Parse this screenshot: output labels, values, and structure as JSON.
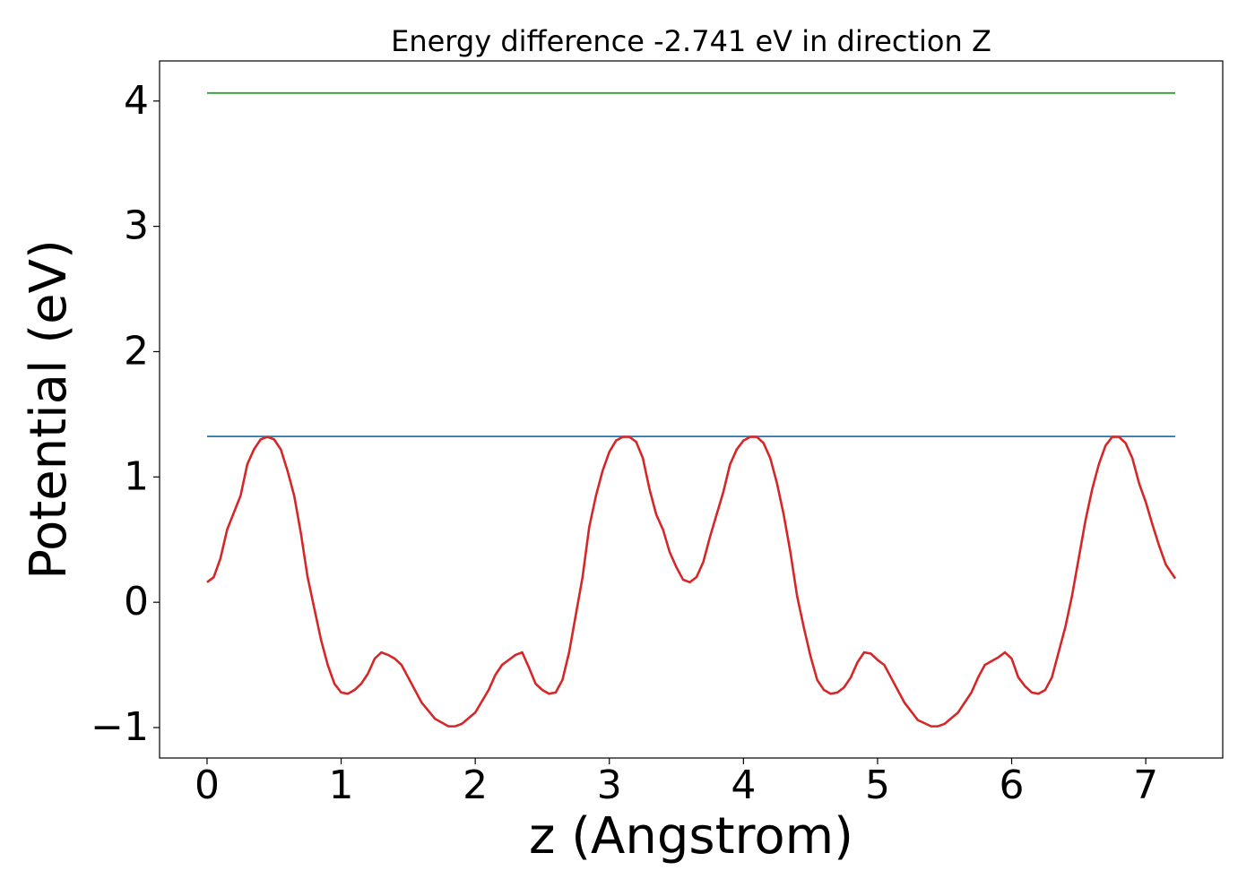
{
  "chart_data": {
    "type": "line",
    "title": "Energy difference -2.741 eV in direction Z",
    "xlabel": "z (Angstrom)",
    "ylabel": "Potential (eV)",
    "xlim": [
      -0.354,
      7.574
    ],
    "ylim": [
      -1.243,
      4.32
    ],
    "xticks": [
      0,
      1,
      2,
      3,
      4,
      5,
      6,
      7
    ],
    "yticks": [
      {
        "value": -1,
        "label": "−1"
      },
      0,
      1,
      2,
      3,
      4
    ],
    "series": [
      {
        "color": "#2ca02c",
        "x": [
          0,
          7.22
        ],
        "values": [
          4.064,
          4.064
        ]
      },
      {
        "color": "#1f77b4",
        "x": [
          0,
          7.22
        ],
        "values": [
          1.323,
          1.323
        ]
      },
      {
        "color": "#d62728",
        "x": [
          0,
          0.05,
          0.1,
          0.15,
          0.25,
          0.3,
          0.35,
          0.4,
          0.45,
          0.5,
          0.55,
          0.6,
          0.65,
          0.7,
          0.75,
          0.8,
          0.85,
          0.9,
          0.95,
          1.0,
          1.05,
          1.1,
          1.15,
          1.2,
          1.25,
          1.3,
          1.35,
          1.4,
          1.45,
          1.5,
          1.6,
          1.7,
          1.8,
          1.85,
          1.9,
          2.0,
          2.1,
          2.15,
          2.2,
          2.25,
          2.3,
          2.35,
          2.4,
          2.45,
          2.5,
          2.55,
          2.6,
          2.65,
          2.7,
          2.75,
          2.8,
          2.85,
          2.9,
          2.95,
          3.0,
          3.05,
          3.1,
          3.15,
          3.2,
          3.25,
          3.3,
          3.35,
          3.4,
          3.45,
          3.5,
          3.55,
          3.6,
          3.65,
          3.7,
          3.75,
          3.8,
          3.85,
          3.9,
          3.95,
          4.0,
          4.05,
          4.1,
          4.15,
          4.2,
          4.25,
          4.3,
          4.35,
          4.4,
          4.45,
          4.5,
          4.55,
          4.6,
          4.65,
          4.7,
          4.75,
          4.8,
          4.85,
          4.9,
          4.95,
          5.0,
          5.05,
          5.1,
          5.2,
          5.3,
          5.4,
          5.45,
          5.5,
          5.6,
          5.7,
          5.75,
          5.8,
          5.9,
          5.95,
          6.0,
          6.05,
          6.1,
          6.15,
          6.2,
          6.25,
          6.3,
          6.35,
          6.4,
          6.45,
          6.5,
          6.55,
          6.6,
          6.65,
          6.7,
          6.75,
          6.8,
          6.85,
          6.9,
          6.95,
          7.0,
          7.05,
          7.1,
          7.15,
          7.22
        ],
        "values": [
          0.16,
          0.2,
          0.35,
          0.58,
          0.85,
          1.1,
          1.22,
          1.3,
          1.32,
          1.3,
          1.22,
          1.05,
          0.85,
          0.55,
          0.2,
          -0.05,
          -0.3,
          -0.5,
          -0.65,
          -0.72,
          -0.73,
          -0.7,
          -0.65,
          -0.57,
          -0.45,
          -0.4,
          -0.42,
          -0.45,
          -0.5,
          -0.6,
          -0.8,
          -0.93,
          -0.99,
          -0.99,
          -0.97,
          -0.88,
          -0.7,
          -0.58,
          -0.5,
          -0.46,
          -0.42,
          -0.4,
          -0.52,
          -0.65,
          -0.7,
          -0.73,
          -0.72,
          -0.62,
          -0.4,
          -0.1,
          0.2,
          0.6,
          0.85,
          1.05,
          1.2,
          1.29,
          1.32,
          1.32,
          1.28,
          1.15,
          0.9,
          0.7,
          0.58,
          0.4,
          0.28,
          0.18,
          0.16,
          0.2,
          0.32,
          0.52,
          0.7,
          0.88,
          1.1,
          1.22,
          1.29,
          1.32,
          1.32,
          1.27,
          1.15,
          0.95,
          0.7,
          0.4,
          0.05,
          -0.2,
          -0.43,
          -0.62,
          -0.7,
          -0.73,
          -0.72,
          -0.68,
          -0.6,
          -0.48,
          -0.4,
          -0.41,
          -0.46,
          -0.5,
          -0.6,
          -0.8,
          -0.94,
          -0.99,
          -0.99,
          -0.97,
          -0.88,
          -0.72,
          -0.6,
          -0.5,
          -0.44,
          -0.4,
          -0.45,
          -0.6,
          -0.67,
          -0.72,
          -0.73,
          -0.7,
          -0.6,
          -0.4,
          -0.2,
          0.05,
          0.35,
          0.65,
          0.9,
          1.1,
          1.25,
          1.32,
          1.32,
          1.27,
          1.15,
          0.95,
          0.8,
          0.62,
          0.45,
          0.3,
          0.19
        ]
      }
    ]
  }
}
